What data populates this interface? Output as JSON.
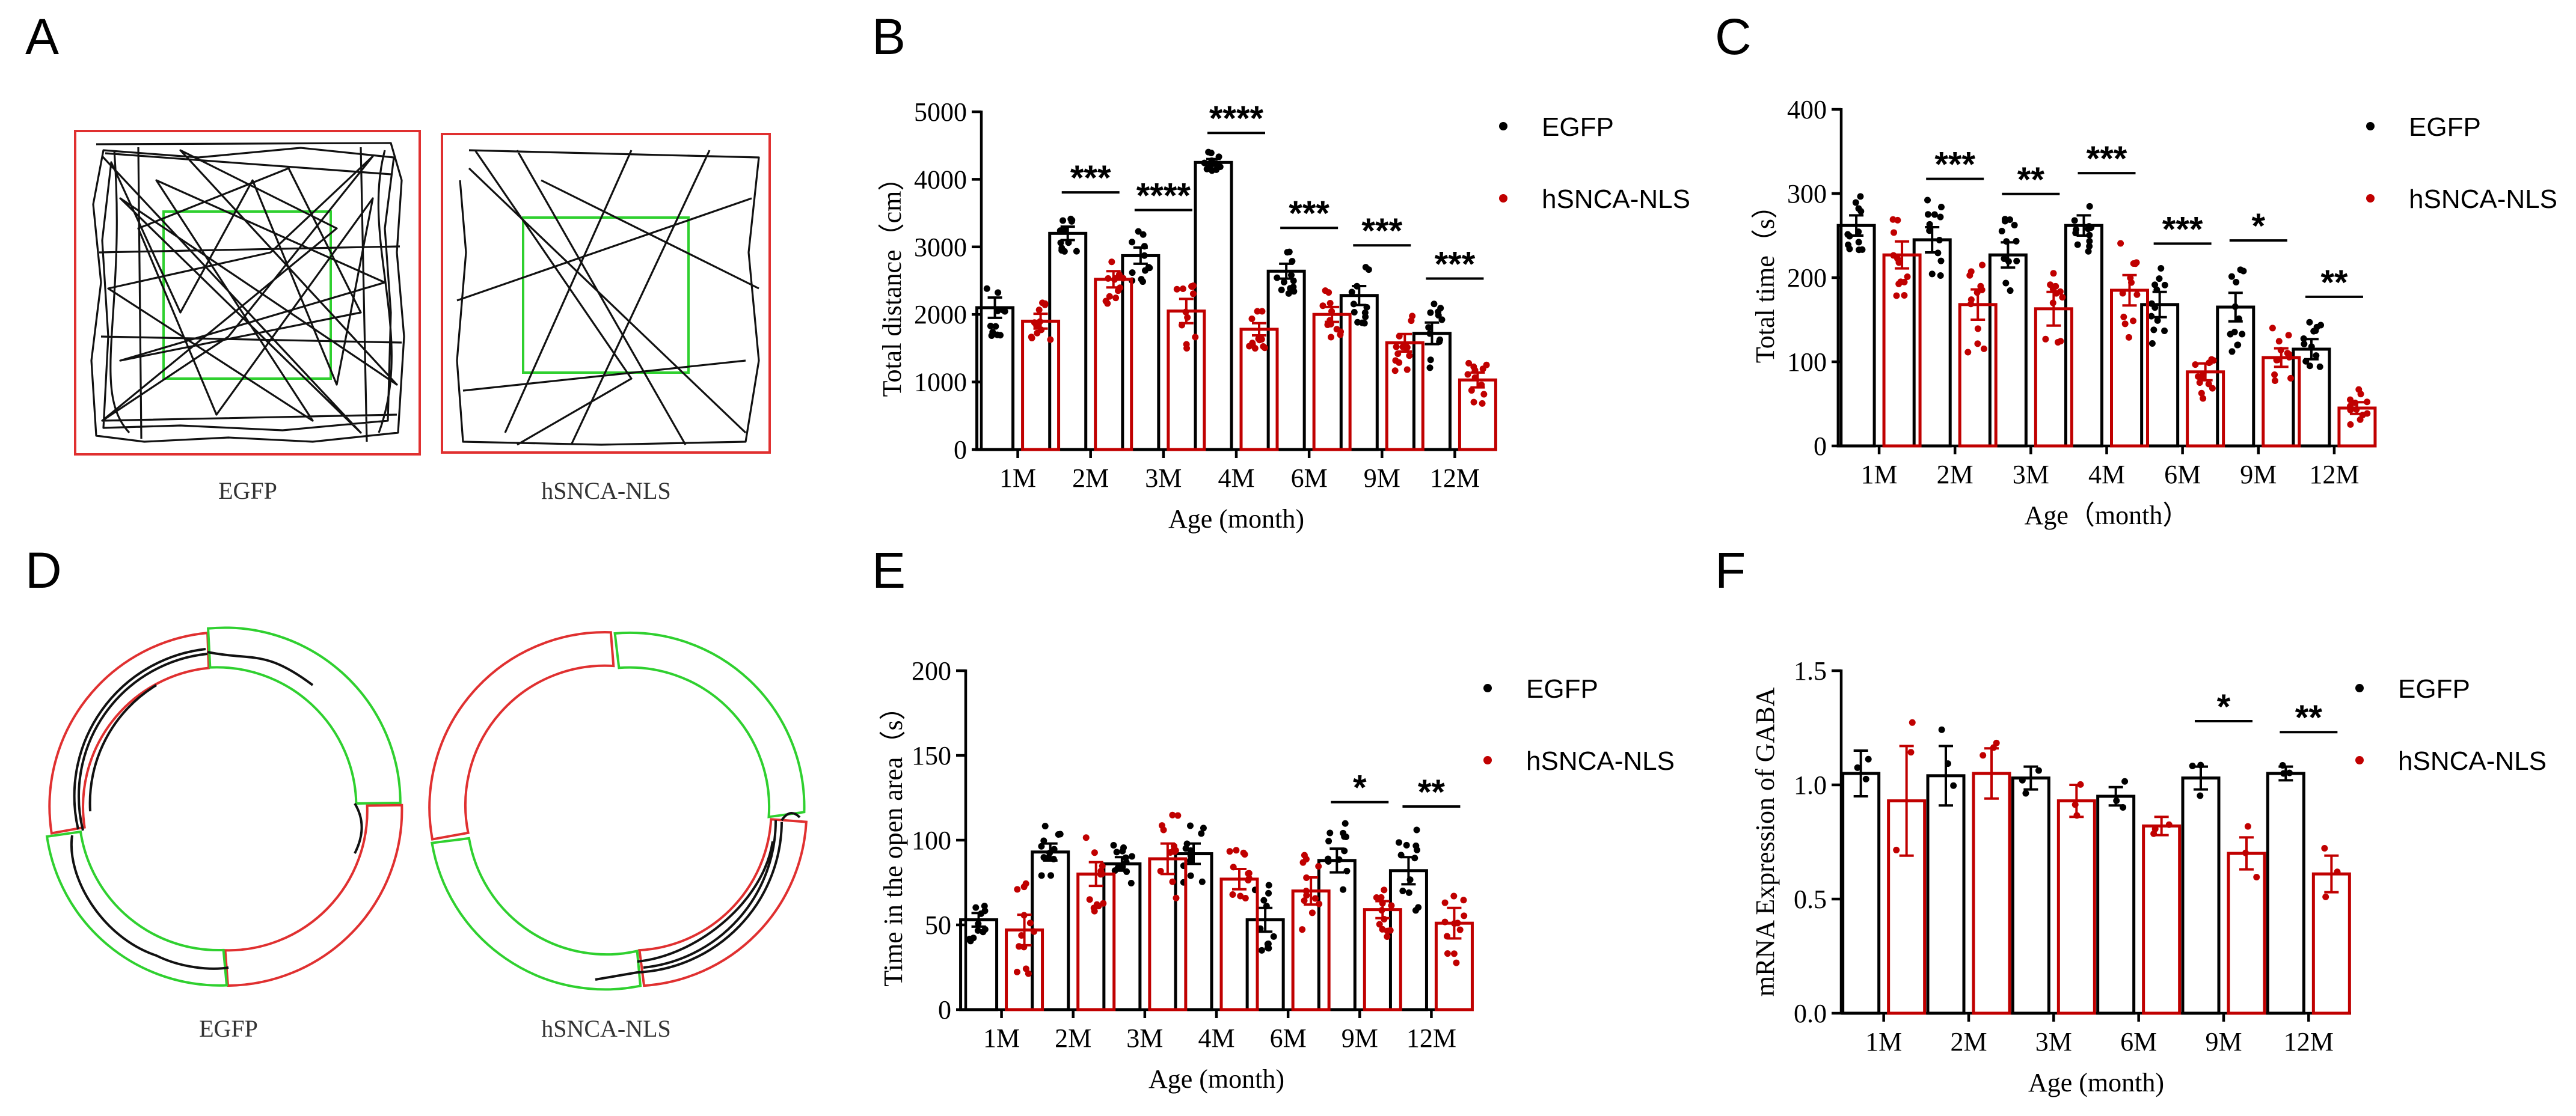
{
  "figure": {
    "panels": {
      "A": {
        "letter": "A",
        "caption_left": "EGFP",
        "caption_right": "hSNCA-NLS",
        "arena": "open-field",
        "inner_color": "#2fd02f",
        "outer_color": "#e03030"
      },
      "D": {
        "letter": "D",
        "caption_left": "EGFP",
        "caption_right": "hSNCA-NLS",
        "arena": "elevated-zero-maze",
        "closed_color": "#e03030",
        "open_color": "#2fd02f"
      }
    }
  },
  "colors": {
    "egfp": "#000000",
    "hsnca": "#c00000",
    "open_zone": "#2fd02f",
    "closed_zone": "#e03030"
  },
  "chart_data": [
    {
      "id": "B",
      "letter": "B",
      "type": "bar",
      "ylabel": "Total distance（cm）",
      "xlabel": "Age (month)",
      "ylim": [
        0,
        5000
      ],
      "yticks": [
        0,
        1000,
        2000,
        3000,
        4000,
        5000
      ],
      "categories": [
        "1M",
        "2M",
        "3M",
        "4M",
        "6M",
        "9M",
        "12M"
      ],
      "series": [
        {
          "name": "EGFP",
          "color": "#000000",
          "values": [
            2100,
            3200,
            2870,
            4250,
            2640,
            2280,
            1720
          ],
          "sem": [
            150,
            100,
            120,
            50,
            110,
            140,
            160
          ]
        },
        {
          "name": "hSNCA-NLS",
          "color": "#c00000",
          "values": [
            1900,
            2520,
            2050,
            1780,
            2000,
            1580,
            1030
          ],
          "sem": [
            110,
            120,
            180,
            90,
            110,
            130,
            110
          ]
        }
      ],
      "significance": [
        "",
        "***",
        "****",
        "****",
        "***",
        "***",
        "***"
      ],
      "legend": [
        "EGFP",
        "hSNCA-NLS"
      ]
    },
    {
      "id": "C",
      "letter": "C",
      "type": "bar",
      "ylabel": "Total time（s）",
      "xlabel": "Age（month）",
      "ylim": [
        0,
        400
      ],
      "yticks": [
        0,
        100,
        200,
        300,
        400
      ],
      "categories": [
        "1M",
        "2M",
        "3M",
        "4M",
        "6M",
        "9M",
        "12M"
      ],
      "series": [
        {
          "name": "EGFP",
          "color": "#000000",
          "values": [
            262,
            245,
            227,
            262,
            168,
            165,
            115
          ],
          "sem": [
            12,
            15,
            15,
            12,
            15,
            17,
            12
          ]
        },
        {
          "name": "hSNCA-NLS",
          "color": "#c00000",
          "values": [
            227,
            168,
            163,
            185,
            88,
            105,
            45
          ],
          "sem": [
            16,
            18,
            20,
            18,
            10,
            11,
            7
          ]
        }
      ],
      "significance": [
        "",
        "***",
        "**",
        "***",
        "***",
        "*",
        "**"
      ],
      "legend": [
        "EGFP",
        "hSNCA-NLS"
      ]
    },
    {
      "id": "E",
      "letter": "E",
      "type": "bar",
      "ylabel": "Time in the open area（s）",
      "xlabel": "Age (month)",
      "ylim": [
        0,
        200
      ],
      "yticks": [
        0,
        50,
        100,
        150,
        200
      ],
      "categories": [
        "1M",
        "2M",
        "3M",
        "4M",
        "6M",
        "9M",
        "12M"
      ],
      "series": [
        {
          "name": "EGFP",
          "color": "#000000",
          "values": [
            53,
            93,
            86,
            92,
            53,
            88,
            82
          ],
          "sem": [
            4,
            5,
            4,
            6,
            7,
            7,
            8
          ]
        },
        {
          "name": "hSNCA-NLS",
          "color": "#c00000",
          "values": [
            47,
            80,
            89,
            77,
            70,
            59,
            51
          ],
          "sem": [
            9,
            7,
            9,
            6,
            8,
            5,
            9
          ]
        }
      ],
      "significance": [
        "",
        "",
        "",
        "",
        "",
        "*",
        "**"
      ],
      "legend": [
        "EGFP",
        "hSNCA-NLS"
      ]
    },
    {
      "id": "F",
      "letter": "F",
      "type": "bar",
      "ylabel": "mRNA Expression of GABA",
      "xlabel": "Age (month)",
      "ylim": [
        0,
        1.5
      ],
      "yticks": [
        "0.0",
        "0.5",
        "1.0",
        "1.5"
      ],
      "categories": [
        "1M",
        "2M",
        "3M",
        "6M",
        "9M",
        "12M"
      ],
      "series": [
        {
          "name": "EGFP",
          "color": "#000000",
          "values": [
            1.05,
            1.04,
            1.03,
            0.95,
            1.03,
            1.05
          ],
          "sem": [
            0.1,
            0.13,
            0.05,
            0.04,
            0.05,
            0.03
          ]
        },
        {
          "name": "hSNCA-NLS",
          "color": "#c00000",
          "values": [
            0.93,
            1.05,
            0.93,
            0.82,
            0.7,
            0.61
          ],
          "sem": [
            0.24,
            0.11,
            0.07,
            0.04,
            0.07,
            0.08
          ]
        }
      ],
      "significance": [
        "",
        "",
        "",
        "",
        "*",
        "**"
      ],
      "legend": [
        "EGFP",
        "hSNCA-NLS"
      ]
    }
  ]
}
